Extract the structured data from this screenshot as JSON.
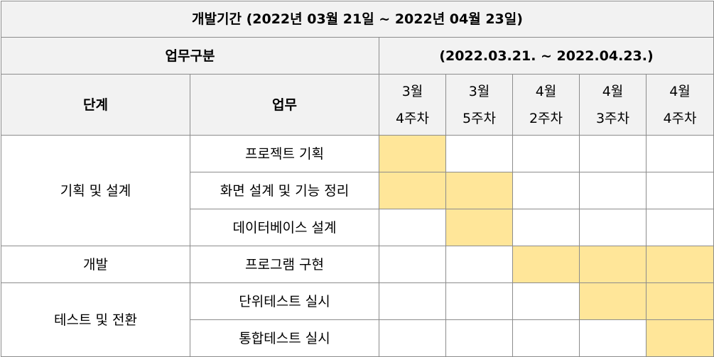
{
  "title": "개발기간  (2022년 03월 21일 ~ 2022년 04월 23일)",
  "section_header": {
    "task_group": "업무구분",
    "period": "(2022.03.21. ~ 2022.04.23.)"
  },
  "column_headers": {
    "stage": "단계",
    "task": "업무",
    "weeks": [
      {
        "month": "3월",
        "week": "4주차"
      },
      {
        "month": "3월",
        "week": "5주차"
      },
      {
        "month": "4월",
        "week": "2주차"
      },
      {
        "month": "4월",
        "week": "3주차"
      },
      {
        "month": "4월",
        "week": "4주차"
      }
    ]
  },
  "stages": [
    {
      "name": "기획 및 설계",
      "tasks": [
        {
          "name": "프로젝트 기획",
          "active": [
            true,
            false,
            false,
            false,
            false
          ]
        },
        {
          "name": "화면 설계 및 기능 정리",
          "active": [
            true,
            true,
            false,
            false,
            false
          ]
        },
        {
          "name": "데이터베이스 설계",
          "active": [
            false,
            true,
            false,
            false,
            false
          ]
        }
      ]
    },
    {
      "name": "개발",
      "tasks": [
        {
          "name": "프로그램 구현",
          "active": [
            false,
            false,
            true,
            true,
            true
          ]
        }
      ]
    },
    {
      "name": "테스트 및 전환",
      "tasks": [
        {
          "name": "단위테스트 실시",
          "active": [
            false,
            false,
            false,
            true,
            true
          ]
        },
        {
          "name": "통합테스트 실시",
          "active": [
            false,
            false,
            false,
            false,
            true
          ]
        }
      ]
    }
  ],
  "colors": {
    "active_fill": "#ffe699",
    "header_fill": "#f2f2f2",
    "border": "#8c8c8c"
  }
}
